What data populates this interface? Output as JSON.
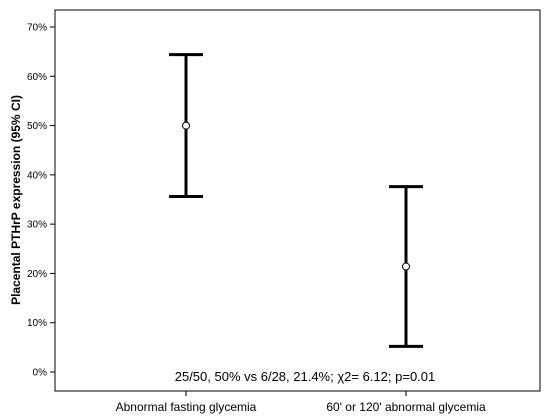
{
  "chart_data": {
    "type": "errorbar",
    "title": "",
    "xlabel": "",
    "ylabel": "Placental PTHrP expression (95% CI)",
    "categories": [
      "Abnormal fasting glycemia",
      "60' or 120' abnormal glycemia"
    ],
    "series": [
      {
        "values": [
          50,
          21.4
        ],
        "ci_lower": [
          35.6,
          5.2
        ],
        "ci_upper": [
          64.4,
          37.6
        ]
      }
    ],
    "ylim": [
      0,
      70
    ],
    "yticks": [
      0,
      10,
      20,
      30,
      40,
      50,
      60,
      70
    ],
    "ytick_labels": [
      "0%",
      "10%",
      "20%",
      "30%",
      "40%",
      "50%",
      "60%",
      "70%"
    ],
    "annotation": "25/50, 50% vs 6/28, 21.4%; χ2= 6.12; p=0.01",
    "grid": false
  }
}
